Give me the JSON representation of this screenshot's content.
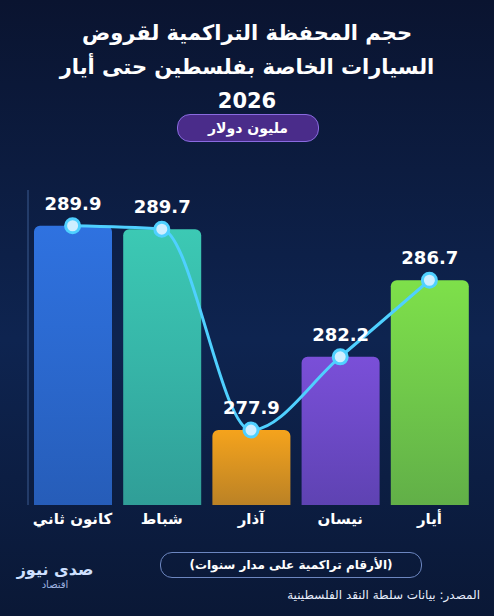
{
  "chart_data": {
    "type": "bar",
    "title": "حجم المحفظة التراكمية لقروض السيارات الخاصة بفلسطين حتى أيار 2026",
    "subtitle": "مليون دولار",
    "note": "(الأرقام تراكمية على مدار سنوات)",
    "source": "المصدر: بيانات سلطة النقد الفلسطينية",
    "brand": "صدى نيوز",
    "brand_sub": "اقتصاد",
    "categories": [
      "كانون ثاني",
      "شباط",
      "آذار",
      "نيسان",
      "أيار"
    ],
    "series": [
      {
        "type": "bar",
        "values": [
          289.9,
          289.7,
          277.9,
          282.2,
          286.7
        ],
        "colors": [
          "#2f72e0",
          "#3cc9b4",
          "#f5a31c",
          "#7a4fd8",
          "#7ee04a"
        ]
      },
      {
        "type": "line",
        "values": [
          289.9,
          289.7,
          277.9,
          282.2,
          286.7
        ],
        "color": "#4fd0ff",
        "marker": "circle",
        "line_style": "solid"
      }
    ],
    "ylim": [
      273.5,
      292
    ],
    "data_labels": true,
    "tick_labels": "x",
    "grid": false
  }
}
